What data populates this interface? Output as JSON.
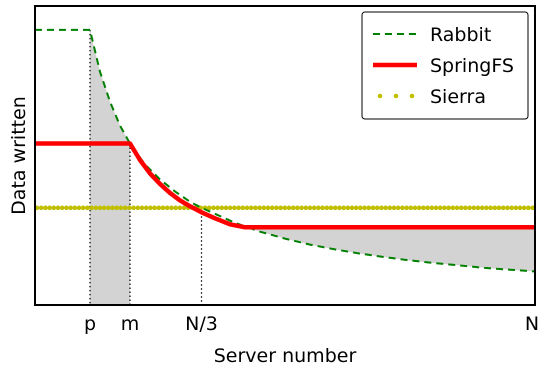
{
  "chart_data": {
    "type": "line",
    "title": "",
    "xlabel": "Server number",
    "ylabel": "Data written",
    "x_ticks": [
      {
        "label": "p",
        "x": 0.11
      },
      {
        "label": "m",
        "x": 0.19
      },
      {
        "label": "N/3",
        "x": 0.333
      },
      {
        "label": "N",
        "x": 1.0
      }
    ],
    "xlim": [
      0,
      1
    ],
    "ylim": [
      0,
      1
    ],
    "grid": false,
    "legend_position": "top-right",
    "series": [
      {
        "name": "Rabbit",
        "style": "dashed",
        "color": "#008000",
        "x": [
          0.0,
          0.11,
          0.13,
          0.15,
          0.17,
          0.19,
          0.22,
          0.25,
          0.28,
          0.31,
          0.333,
          0.36,
          0.4,
          0.45,
          0.5,
          0.55,
          0.6,
          0.65,
          0.7,
          0.75,
          0.8,
          0.85,
          0.9,
          0.95,
          1.0
        ],
        "y": [
          0.92,
          0.92,
          0.78,
          0.68,
          0.6,
          0.54,
          0.47,
          0.42,
          0.38,
          0.345,
          0.325,
          0.305,
          0.275,
          0.245,
          0.222,
          0.202,
          0.186,
          0.172,
          0.16,
          0.149,
          0.14,
          0.132,
          0.124,
          0.118,
          0.112
        ]
      },
      {
        "name": "SpringFS",
        "style": "solid",
        "color": "#ff0000",
        "x": [
          0.0,
          0.19,
          0.21,
          0.23,
          0.25,
          0.27,
          0.29,
          0.31,
          0.333,
          0.36,
          0.39,
          0.42,
          1.0
        ],
        "y": [
          0.54,
          0.54,
          0.485,
          0.44,
          0.405,
          0.375,
          0.35,
          0.33,
          0.31,
          0.29,
          0.27,
          0.26,
          0.26
        ]
      },
      {
        "name": "Sierra",
        "style": "dotted",
        "color": "#bfbf00",
        "x": [
          0.0,
          1.0
        ],
        "y": [
          0.325,
          0.325
        ]
      }
    ],
    "shaded_regions": [
      {
        "between": [
          "Rabbit",
          "bottom"
        ],
        "x_range": [
          0.11,
          0.19
        ],
        "color": "#d3d3d3"
      },
      {
        "between": [
          "SpringFS",
          "Rabbit"
        ],
        "x_range": [
          0.42,
          1.0
        ],
        "color": "#d3d3d3"
      }
    ],
    "vertical_markers": [
      0.11,
      0.19,
      0.333
    ]
  }
}
